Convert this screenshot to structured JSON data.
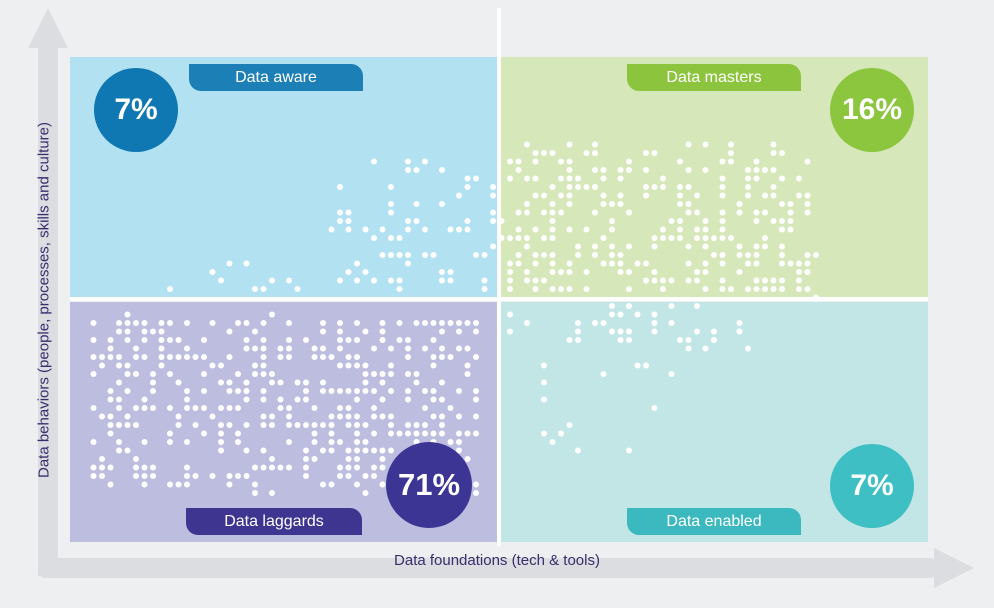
{
  "chart_data": {
    "type": "scatter",
    "xlabel": "Data foundations (tech & tools)",
    "ylabel": "Data behaviors (people, processes, skills and culture)",
    "quadrants": [
      {
        "name": "Data aware",
        "percent": "7%",
        "color": "#1c7fb6",
        "position": "top-left"
      },
      {
        "name": "Data masters",
        "percent": "16%",
        "color": "#8dc43e",
        "position": "top-right"
      },
      {
        "name": "Data laggards",
        "percent": "71%",
        "color": "#3e3591",
        "position": "bottom-left"
      },
      {
        "name": "Data enabled",
        "percent": "7%",
        "color": "#3cb8bf",
        "position": "bottom-right"
      }
    ],
    "shares": {
      "data_aware": 7,
      "data_masters": 16,
      "data_laggards": 71,
      "data_enabled": 7
    },
    "point_clusters": [
      {
        "quadrant": "bottom-left",
        "share": 71
      },
      {
        "quadrant": "top-right",
        "share": 16
      },
      {
        "quadrant": "top-left",
        "share": 7
      },
      {
        "quadrant": "bottom-right",
        "share": 7
      }
    ]
  },
  "labels": {
    "aware": "Data aware",
    "masters": "Data masters",
    "laggards": "Data laggards",
    "enabled": "Data enabled",
    "aware_pct": "7%",
    "masters_pct": "16%",
    "laggards_pct": "71%",
    "enabled_pct": "7%",
    "xlabel": "Data foundations (tech & tools)",
    "ylabel": "Data behaviors (people, processes, skills and culture)"
  }
}
